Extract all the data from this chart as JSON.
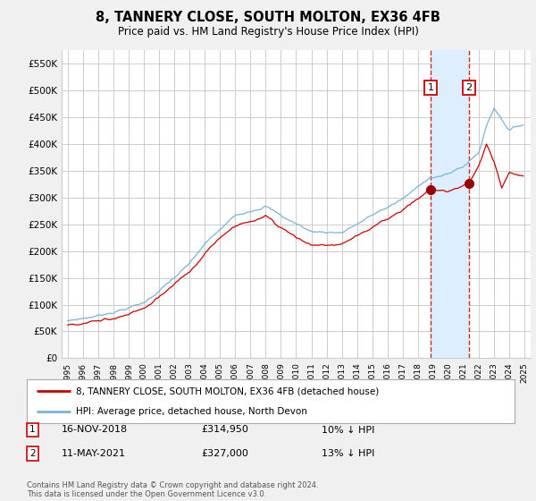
{
  "title": "8, TANNERY CLOSE, SOUTH MOLTON, EX36 4FB",
  "subtitle": "Price paid vs. HM Land Registry's House Price Index (HPI)",
  "hpi_label": "HPI: Average price, detached house, North Devon",
  "price_label": "8, TANNERY CLOSE, SOUTH MOLTON, EX36 4FB (detached house)",
  "sale1_date": "16-NOV-2018",
  "sale1_price": 314950,
  "sale1_hpi_diff": "10% ↓ HPI",
  "sale2_date": "11-MAY-2021",
  "sale2_price": 327000,
  "sale2_hpi_diff": "13% ↓ HPI",
  "footer": "Contains HM Land Registry data © Crown copyright and database right 2024.\nThis data is licensed under the Open Government Licence v3.0.",
  "hpi_color": "#7ab4d8",
  "price_color": "#cc0000",
  "sale_marker_color": "#990000",
  "vline_color": "#cc0000",
  "vspan_color": "#ddeeff",
  "bg_color": "#f0f0f0",
  "plot_bg": "#ffffff",
  "grid_color": "#cccccc",
  "ylim": [
    0,
    575000
  ],
  "yticks": [
    0,
    50000,
    100000,
    150000,
    200000,
    250000,
    300000,
    350000,
    400000,
    450000,
    500000,
    550000
  ]
}
